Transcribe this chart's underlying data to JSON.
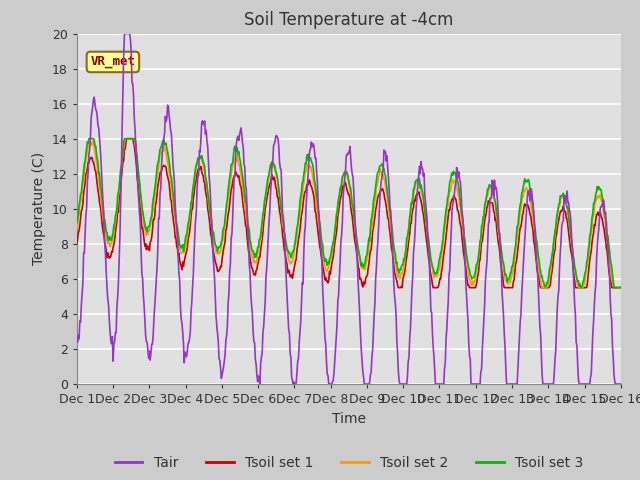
{
  "title": "Soil Temperature at -4cm",
  "xlabel": "Time",
  "ylabel": "Temperature (C)",
  "ylim": [
    0,
    20
  ],
  "xlim": [
    0,
    15
  ],
  "xtick_labels": [
    "Dec 1",
    "Dec 2",
    "Dec 3",
    "Dec 4",
    "Dec 5",
    "Dec 6",
    "Dec 7",
    "Dec 8",
    "Dec 9",
    "Dec 10",
    "Dec 11",
    "Dec 12",
    "Dec 13",
    "Dec 14",
    "Dec 15",
    "Dec 16"
  ],
  "ytick_values": [
    0,
    2,
    4,
    6,
    8,
    10,
    12,
    14,
    16,
    18,
    20
  ],
  "color_tair": "#9933cc",
  "color_tsoil1": "#cc0000",
  "color_tsoil2": "#ff9900",
  "color_tsoil3": "#00bb00",
  "linewidth": 1.2,
  "annotation_text": "VR_met",
  "title_fontsize": 12,
  "label_fontsize": 10,
  "tick_fontsize": 9,
  "legend_fontsize": 10
}
